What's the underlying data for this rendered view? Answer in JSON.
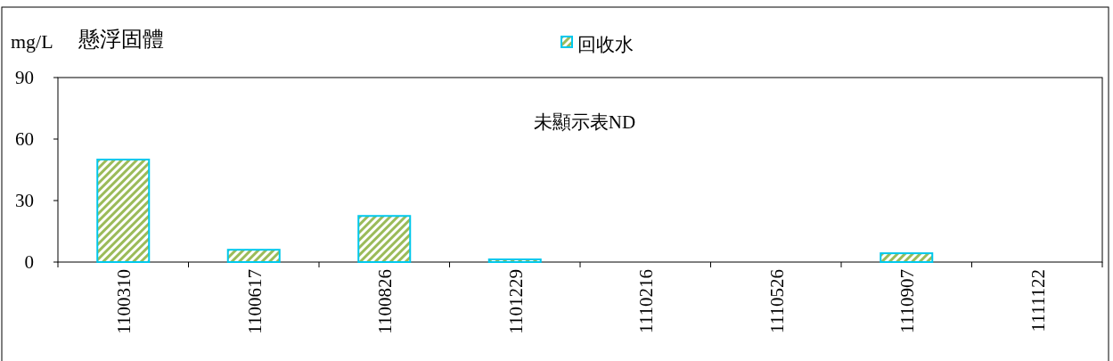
{
  "chart_data": {
    "type": "bar",
    "title": "懸浮固體",
    "ylabel": "mg/L",
    "categories": [
      "1100310",
      "1100617",
      "1100826",
      "1101229",
      "1110216",
      "1110526",
      "1110907",
      "1111122"
    ],
    "series": [
      {
        "name": "回收水",
        "color": "#00c8ec",
        "values": [
          50,
          6,
          22.5,
          1.3,
          null,
          null,
          4.3,
          null
        ]
      }
    ],
    "ylim": [
      0,
      90
    ],
    "yticks": [
      0,
      30,
      60,
      90
    ],
    "grid": false,
    "legend": "top",
    "annotations": [
      "未顯示表ND"
    ]
  }
}
